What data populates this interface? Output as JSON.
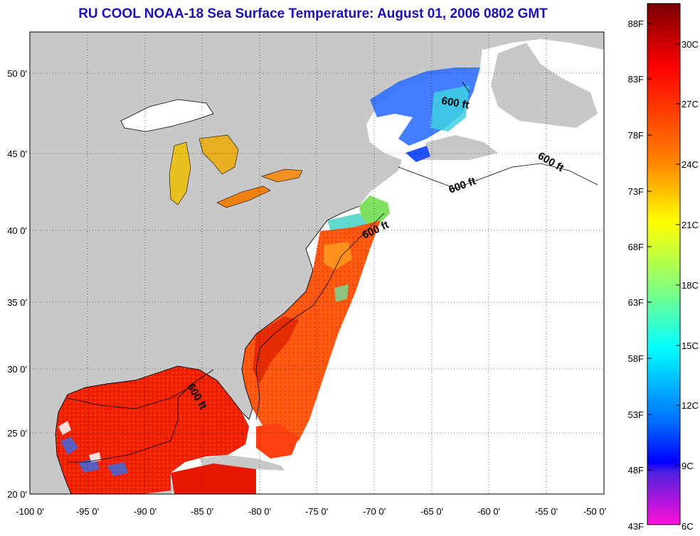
{
  "title": "RU COOL  NOAA-18  Sea Surface Temperature:  August 01, 2006 0802 GMT",
  "map": {
    "lon_ticks": [
      "-100 0'",
      "-95 0'",
      "-90 0'",
      "-85 0'",
      "-80 0'",
      "-75 0'",
      "-70 0'",
      "-65 0'",
      "-60 0'",
      "-55 0'",
      "-50 0'"
    ],
    "lat_ticks": [
      "20 0'",
      "25 0'",
      "30 0'",
      "35 0'",
      "40 0'",
      "45 0'",
      "50 0'"
    ],
    "lon_range": [
      -100,
      -50
    ],
    "lat_range": [
      20,
      52.3
    ],
    "grid": true,
    "land_color": "#c8c8c8",
    "no_data_color": "#ffffff",
    "contour_label": "600 ft",
    "contour_labels": [
      "600 ft",
      "600 ft",
      "600 ft",
      "600 ft",
      "600 ft"
    ]
  },
  "colorbar": {
    "fahrenheit_labels": [
      "88F",
      "83F",
      "78F",
      "73F",
      "68F",
      "63F",
      "58F",
      "53F",
      "48F",
      "43F"
    ],
    "celsius_labels": [
      "30C",
      "27C",
      "24C",
      "21C",
      "18C",
      "15C",
      "12C",
      "9C",
      "6C"
    ],
    "colors": [
      "#7f0000",
      "#ff0000",
      "#ff8000",
      "#ffff00",
      "#80ff80",
      "#00ffff",
      "#0080ff",
      "#0000ff",
      "#8000ff",
      "#ff00ff"
    ]
  }
}
